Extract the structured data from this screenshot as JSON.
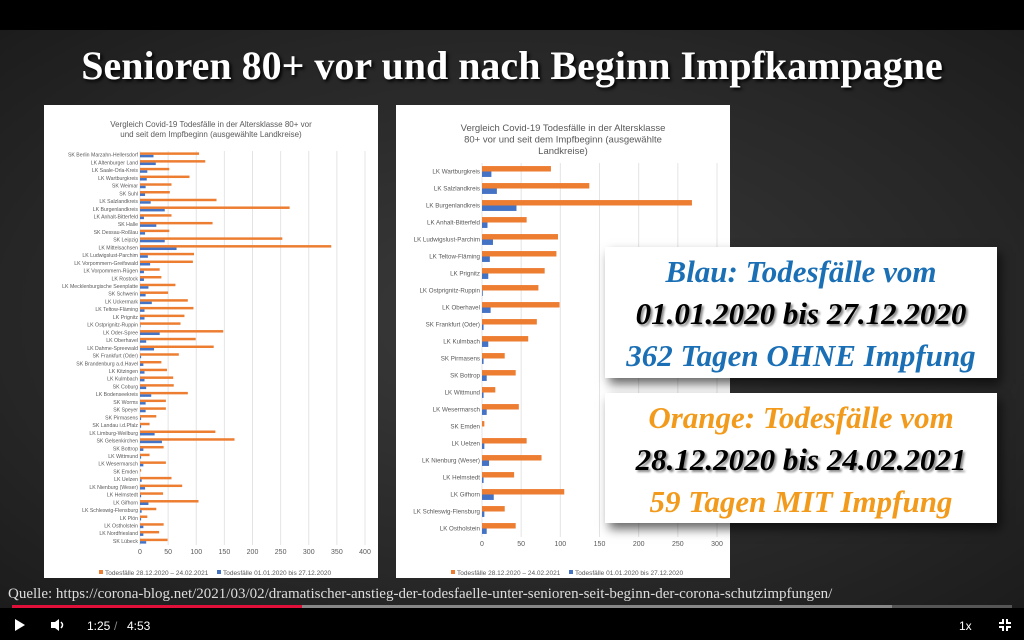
{
  "slide": {
    "title": "Senioren 80+ vor und nach Beginn Impfkampagne"
  },
  "callouts": {
    "blue": {
      "line1": "Blau: Todesfälle vom",
      "line2": "01.01.2020 bis 27.12.2020",
      "line3": "362 Tagen OHNE Impfung",
      "color": "#1a6fb5"
    },
    "orange": {
      "line1": "Orange: Todesfälle vom",
      "line2": "28.12.2020 bis 24.02.2021",
      "line3": "59 Tagen MIT Impfung",
      "color": "#f29a1c"
    }
  },
  "source": {
    "label": "Quelle:",
    "url": "https://corona-blog.net/2021/03/02/dramatischer-anstieg-der-todesfaelle-unter-senioren-seit-beginn-der-corona-schutzimpfungen/"
  },
  "player": {
    "current_time": "1:25",
    "duration": "4:53",
    "speed": "1x",
    "progress_percent": 29,
    "buffered_percent": 88
  },
  "chart_data": [
    {
      "type": "bar",
      "orientation": "horizontal",
      "title": [
        "Vergleich Covid-19 Todesfälle in der Altersklasse 80+ vor",
        "und seit dem Impfbeginn (ausgewählte Landkreise)"
      ],
      "xlim": [
        0,
        400
      ],
      "xticks": [
        0,
        50,
        100,
        150,
        200,
        250,
        300,
        350,
        400
      ],
      "legend_position": "bottom",
      "grid": true,
      "categories": [
        "SK Berlin Marzahn-Hellersdorf",
        "LK Altenburger Land",
        "LK Saale-Orla-Kreis",
        "LK Wartburgkreis",
        "SK Weimar",
        "SK Suhl",
        "LK Salzlandkreis",
        "LK Burgenlandkreis",
        "LK Anhalt-Bitterfeld",
        "SK Halle",
        "SK Dessau-Roßlau",
        "SK Leipzig",
        "LK Mittelsachsen",
        "LK Ludwigslust-Parchim",
        "LK Vorpommern-Greifswald",
        "LK Vorpommern-Rügen",
        "LK Rostock",
        "LK Mecklenburgische Seenplatte",
        "SK Schwerin",
        "LK Uckermark",
        "LK Teltow-Fläming",
        "LK Prignitz",
        "LK Ostprignitz-Ruppin",
        "LK Oder-Spree",
        "LK Oberhavel",
        "LK Dahme-Spreewald",
        "SK Frankfurt (Oder)",
        "SK Brandenburg a.d.Havel",
        "LK Kitzingen",
        "LK Kulmbach",
        "SK Coburg",
        "LK Bodenseekreis",
        "SK Worms",
        "SK Speyer",
        "SK Pirmasens",
        "SK Landau i.d.Pfalz",
        "LK Limburg-Weilburg",
        "SK Gelsenkirchen",
        "SK Bottrop",
        "LK Wittmund",
        "LK Wesermarsch",
        "SK Emden",
        "LK Uelzen",
        "LK Nienburg (Weser)",
        "LK Helmstedt",
        "LK Gifhorn",
        "LK Schleswig-Flensburg",
        "LK Plön",
        "LK Ostholstein",
        "LK Nordfriesland",
        "SK Lübeck"
      ],
      "series": [
        {
          "name": "Todesfälle 28.12.2020 – 24.02.2021",
          "color": "#ed7d31",
          "values": [
            105,
            116,
            52,
            88,
            56,
            53,
            136,
            266,
            56,
            129,
            52,
            253,
            340,
            96,
            94,
            35,
            38,
            63,
            50,
            85,
            95,
            79,
            72,
            148,
            99,
            131,
            69,
            38,
            48,
            59,
            60,
            85,
            46,
            46,
            29,
            17,
            134,
            168,
            42,
            17,
            46,
            2,
            56,
            75,
            41,
            104,
            29,
            13,
            42,
            34,
            49
          ]
        },
        {
          "name": "Todesfälle 01.01.2020 bis 27.12.2020",
          "color": "#4472c4",
          "values": [
            24,
            28,
            13,
            12,
            10,
            9,
            19,
            44,
            7,
            29,
            9,
            44,
            65,
            14,
            18,
            7,
            7,
            15,
            10,
            21,
            8,
            8,
            1,
            35,
            11,
            25,
            2,
            6,
            8,
            8,
            11,
            20,
            10,
            10,
            2,
            2,
            26,
            39,
            6,
            2,
            6,
            0,
            3,
            9,
            2,
            15,
            3,
            2,
            6,
            6,
            11
          ]
        }
      ]
    },
    {
      "type": "bar",
      "orientation": "horizontal",
      "title": [
        "Vergleich Covid-19 Todesfälle in der Altersklasse",
        "80+ vor und seit dem Impfbeginn (ausgewählte",
        "Landkreise)"
      ],
      "xlim": [
        0,
        300
      ],
      "xticks": [
        0,
        50,
        100,
        150,
        200,
        250,
        300
      ],
      "legend_position": "bottom",
      "grid": true,
      "categories": [
        "LK Wartburgkreis",
        "LK Salzlandkreis",
        "LK Burgenlandkreis",
        "LK Anhalt-Bitterfeld",
        "LK Ludwigslust-Parchim",
        "LK Teltow-Fläming",
        "LK Prignitz",
        "LK Ostprignitz-Ruppin",
        "LK Oberhavel",
        "SK Frankfurt (Oder)",
        "LK Kulmbach",
        "SK Pirmasens",
        "SK Bottrop",
        "LK Wittmund",
        "LK Wesermarsch",
        "SK Emden",
        "LK Uelzen",
        "LK Nienburg (Weser)",
        "LK Helmstedt",
        "LK Gifhorn",
        "LK Schleswig-Flensburg",
        "LK Ostholstein"
      ],
      "series": [
        {
          "name": "Todesfälle 28.12.2020 – 24.02.2021",
          "color": "#ed7d31",
          "values": [
            88,
            137,
            268,
            57,
            97,
            95,
            80,
            72,
            99,
            70,
            59,
            29,
            43,
            17,
            47,
            3,
            57,
            76,
            41,
            105,
            29,
            43
          ]
        },
        {
          "name": "Todesfälle 01.01.2020 bis 27.12.2020",
          "color": "#4472c4",
          "values": [
            12,
            19,
            44,
            7,
            14,
            10,
            8,
            1,
            11,
            2,
            8,
            2,
            6,
            2,
            6,
            0,
            3,
            9,
            2,
            15,
            3,
            6
          ]
        }
      ]
    }
  ]
}
